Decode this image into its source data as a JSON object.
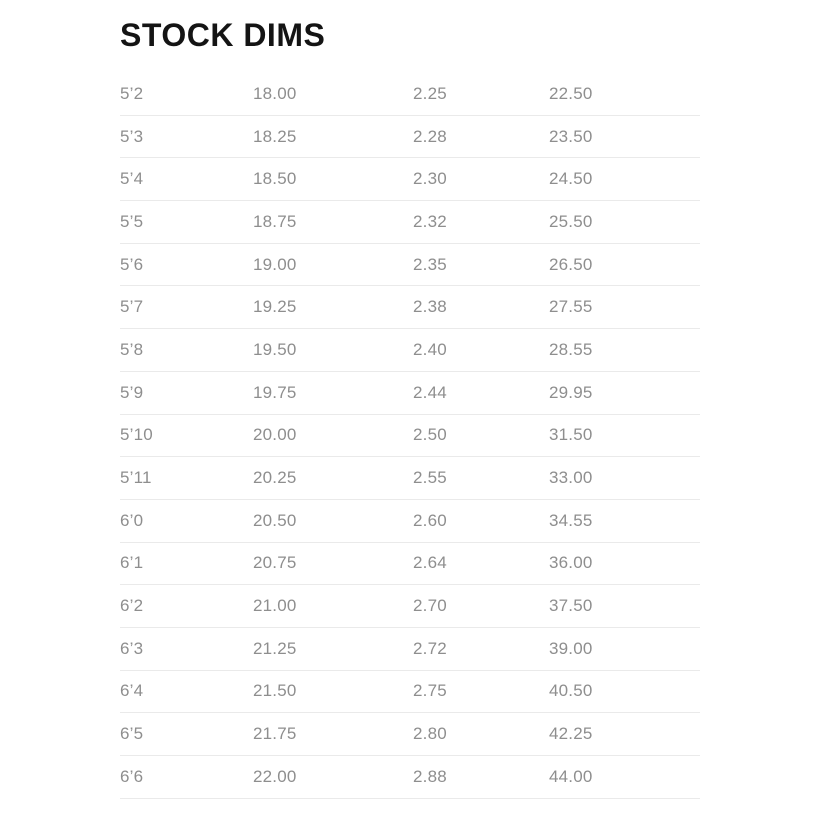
{
  "header": {
    "title": "STOCK DIMS"
  },
  "colors": {
    "background": "#ffffff",
    "title_text": "#141414",
    "cell_text": "#8e8e8e",
    "row_divider": "#eaeaea"
  },
  "chart_data": {
    "type": "table",
    "title": "STOCK DIMS",
    "grid": "horizontal row dividers only, no column headers shown",
    "rows": [
      [
        "5’2",
        "18.00",
        "2.25",
        "22.50"
      ],
      [
        "5’3",
        "18.25",
        "2.28",
        "23.50"
      ],
      [
        "5’4",
        "18.50",
        "2.30",
        "24.50"
      ],
      [
        "5’5",
        "18.75",
        "2.32",
        "25.50"
      ],
      [
        "5’6",
        "19.00",
        "2.35",
        "26.50"
      ],
      [
        "5’7",
        "19.25",
        "2.38",
        "27.55"
      ],
      [
        "5’8",
        "19.50",
        "2.40",
        "28.55"
      ],
      [
        "5’9",
        "19.75",
        "2.44",
        "29.95"
      ],
      [
        "5’10",
        "20.00",
        "2.50",
        "31.50"
      ],
      [
        "5’11",
        "20.25",
        "2.55",
        "33.00"
      ],
      [
        "6’0",
        "20.50",
        "2.60",
        "34.55"
      ],
      [
        "6’1",
        "20.75",
        "2.64",
        "36.00"
      ],
      [
        "6’2",
        "21.00",
        "2.70",
        "37.50"
      ],
      [
        "6’3",
        "21.25",
        "2.72",
        "39.00"
      ],
      [
        "6’4",
        "21.50",
        "2.75",
        "40.50"
      ],
      [
        "6’5",
        "21.75",
        "2.80",
        "42.25"
      ],
      [
        "6’6",
        "22.00",
        "2.88",
        "44.00"
      ]
    ]
  }
}
